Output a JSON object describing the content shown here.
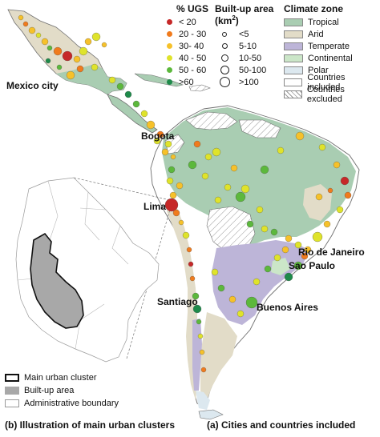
{
  "city_labels": [
    "Mexico city",
    "Bogota",
    "Lima",
    "Rio de Janeiro",
    "Sao Paulo",
    "Santiago",
    "Buenos Aires"
  ],
  "legend_ugs": {
    "title": "% UGS",
    "items": [
      {
        "label": "< 20",
        "color": "#c62828"
      },
      {
        "label": "20 - 30",
        "color": "#f07b1d"
      },
      {
        "label": "30- 40",
        "color": "#f6c12a"
      },
      {
        "label": "40 - 50",
        "color": "#dfe32b"
      },
      {
        "label": "50 - 60",
        "color": "#5cb83c"
      },
      {
        "label": ">60",
        "color": "#1e8a4a"
      }
    ]
  },
  "legend_area": {
    "title_main": "Built-up area (km",
    "title_sup": "2",
    "title_end": ")",
    "items": [
      "<5",
      "5-10",
      "10-50",
      "50-100",
      ">100"
    ]
  },
  "legend_climate": {
    "title": "Climate zone",
    "items": [
      {
        "label": "Tropical",
        "color": "#a9cdb2"
      },
      {
        "label": "Arid",
        "color": "#e2dcc8"
      },
      {
        "label": "Temperate",
        "color": "#bdb5d8"
      },
      {
        "label": "Continental",
        "color": "#cbe6c8"
      },
      {
        "label": "Polar",
        "color": "#dce8ef"
      },
      {
        "label": "Countries included",
        "color": "#ffffff"
      },
      {
        "label": "Countries excluded",
        "color": "hatch"
      }
    ]
  },
  "inset_legend": {
    "items": [
      "Main urban cluster",
      "Built-up area",
      "Administrative boundary"
    ]
  },
  "captions": {
    "left": "(b) Illustration of main urban clusters",
    "right": "(a) Cities and countries included"
  },
  "colors": {
    "land_outline": "#6f6f6f",
    "tropical": "#a9cdb2",
    "arid": "#e2dcc8",
    "temperate": "#bdb5d8",
    "continental": "#cbe6c8",
    "polar": "#dce8ef",
    "built_up": "#a8a8a8"
  }
}
